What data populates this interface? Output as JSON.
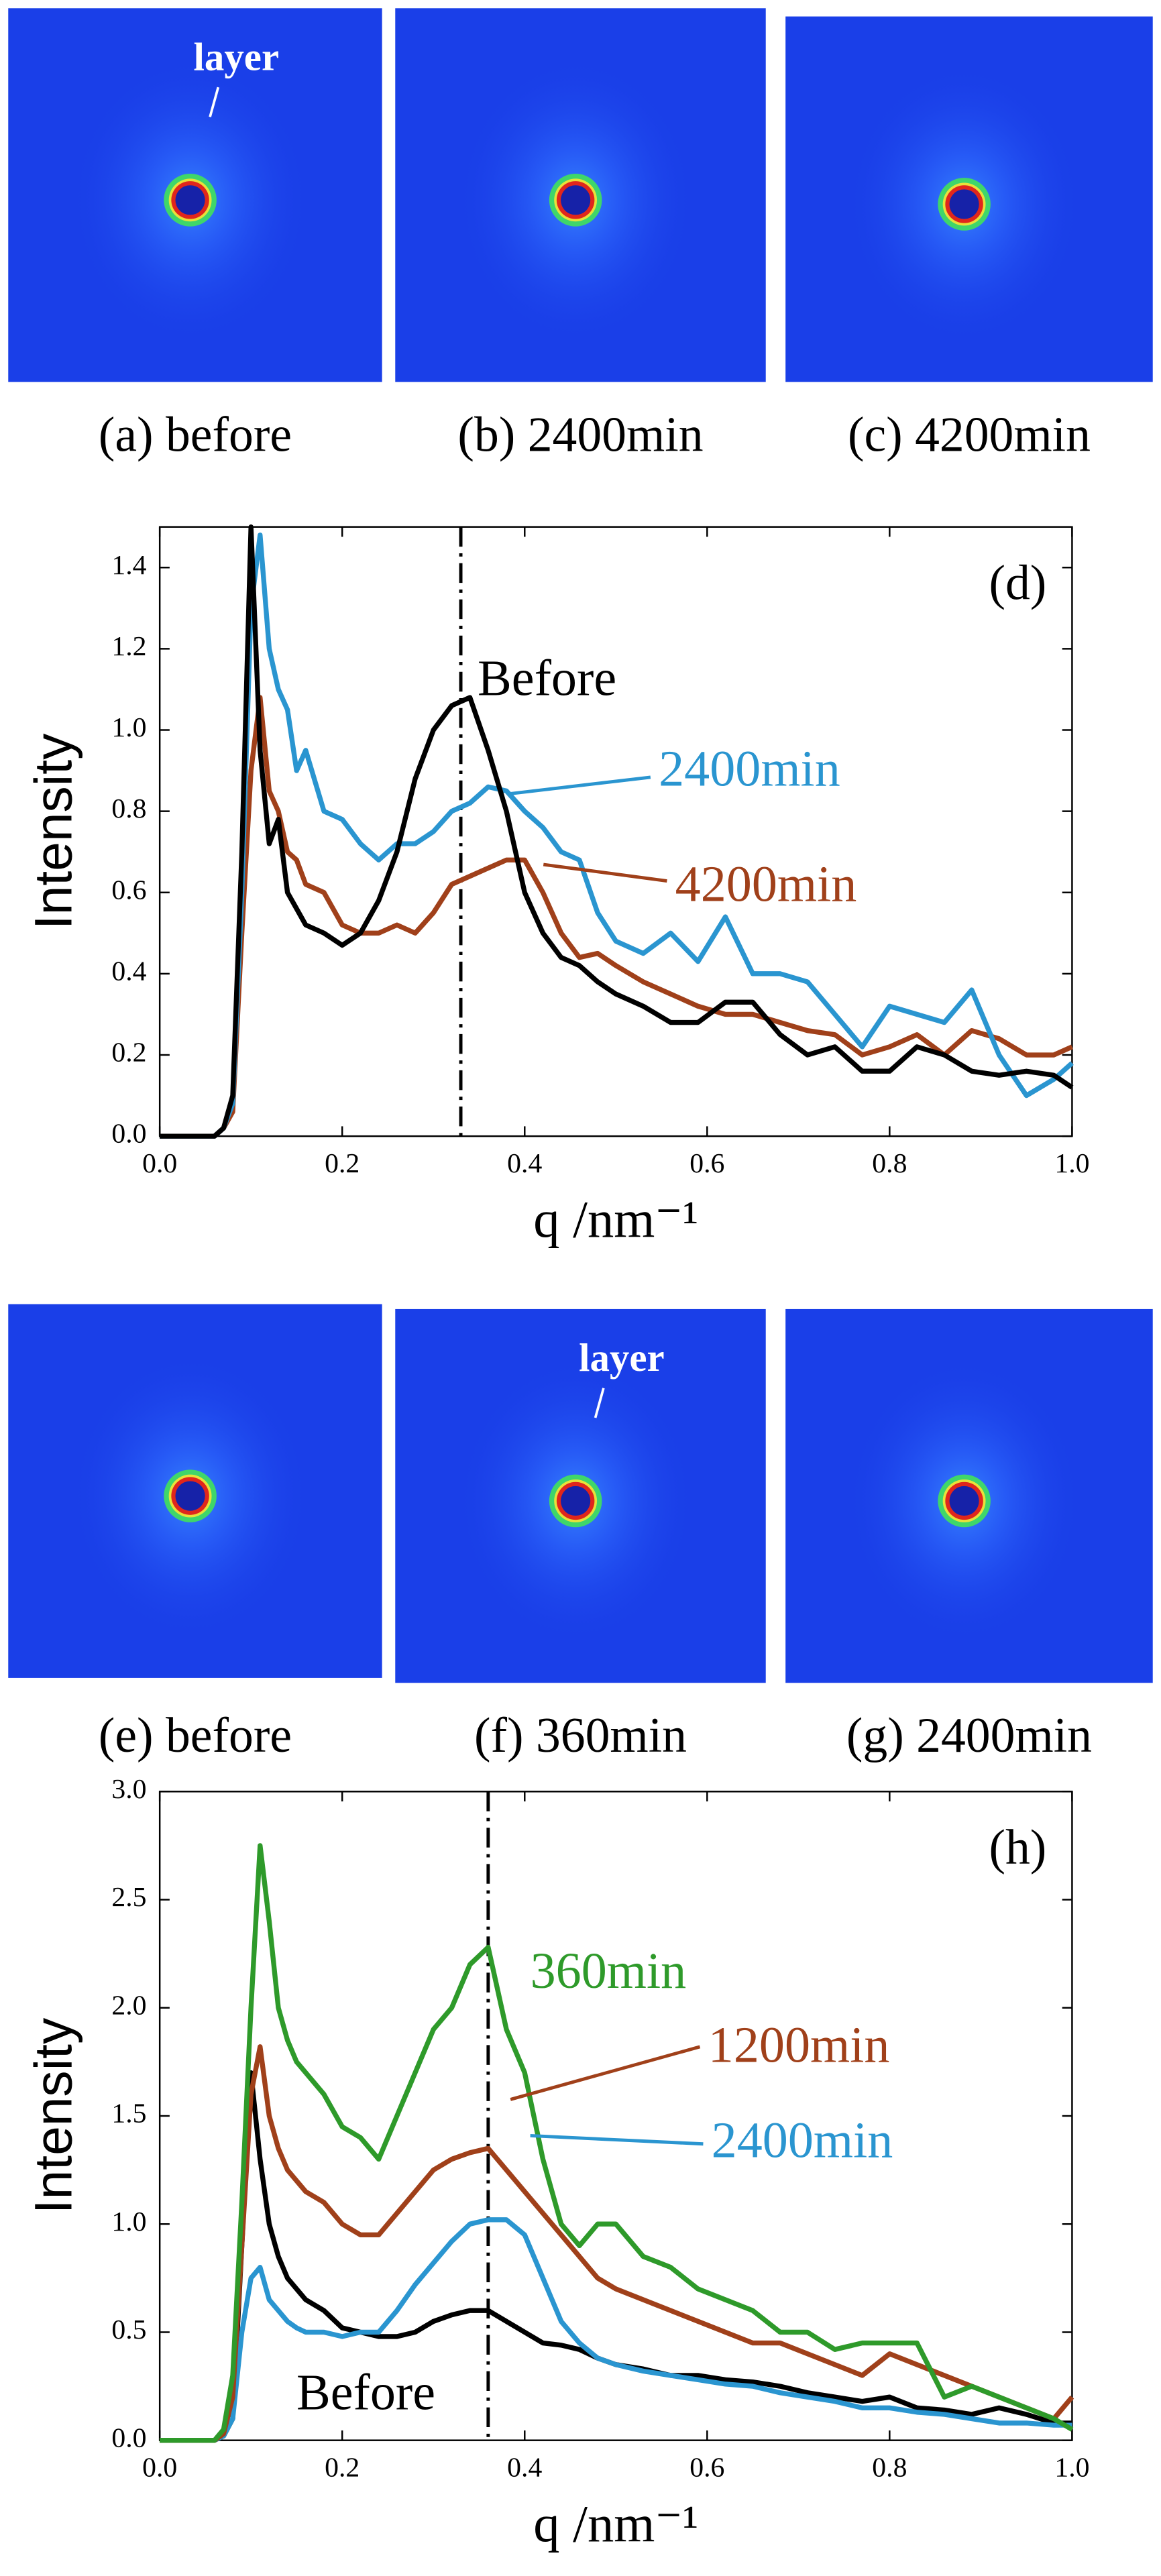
{
  "image_panels": [
    {
      "caption": "(a) before",
      "annotation": "layer"
    },
    {
      "caption": "(b) 2400min"
    },
    {
      "caption": "(c) 4200min"
    },
    {
      "caption": "(e) before"
    },
    {
      "caption": "(f) 360min",
      "annotation": "layer"
    },
    {
      "caption": "(g) 2400min"
    }
  ],
  "chart_data": [
    {
      "type": "line",
      "panel_label": "(d)",
      "xlabel": "q /nm⁻¹",
      "ylabel": "Intensity",
      "xlim": [
        0,
        1.0
      ],
      "ylim": [
        0,
        1.5
      ],
      "xticks": [
        {
          "value": 0,
          "label": "0.0"
        },
        0.2,
        0.4,
        0.6,
        0.8,
        {
          "value": 1,
          "label": "1.0"
        }
      ],
      "yticks": [
        {
          "value": 0,
          "label": "0.0"
        },
        0.2,
        0.4,
        0.6,
        0.8,
        {
          "value": 1,
          "label": "1.0"
        },
        1.2,
        1.4
      ],
      "vline": 0.33,
      "x": [
        0,
        0.02,
        0.04,
        0.06,
        0.07,
        0.08,
        0.09,
        0.1,
        0.11,
        0.12,
        0.13,
        0.14,
        0.15,
        0.16,
        0.18,
        0.2,
        0.22,
        0.24,
        0.26,
        0.28,
        0.3,
        0.32,
        0.34,
        0.36,
        0.38,
        0.4,
        0.42,
        0.44,
        0.46,
        0.48,
        0.5,
        0.53,
        0.56,
        0.59,
        0.62,
        0.65,
        0.68,
        0.71,
        0.74,
        0.77,
        0.8,
        0.83,
        0.86,
        0.89,
        0.92,
        0.95,
        0.98,
        1.0
      ],
      "series": [
        {
          "name": "Before",
          "color": "#000000",
          "values": [
            0,
            0,
            0,
            0,
            0.02,
            0.1,
            0.7,
            1.5,
            0.95,
            0.72,
            0.78,
            0.6,
            0.56,
            0.52,
            0.5,
            0.47,
            0.5,
            0.58,
            0.7,
            0.88,
            1.0,
            1.06,
            1.08,
            0.95,
            0.8,
            0.6,
            0.5,
            0.44,
            0.42,
            0.38,
            0.35,
            0.32,
            0.28,
            0.28,
            0.33,
            0.33,
            0.25,
            0.2,
            0.22,
            0.16,
            0.16,
            0.22,
            0.2,
            0.16,
            0.15,
            0.16,
            0.15,
            0.12
          ]
        },
        {
          "name": "2400min",
          "color": "#2a95d0",
          "values": [
            0,
            0,
            0,
            0,
            0.02,
            0.08,
            0.6,
            1.3,
            1.48,
            1.2,
            1.1,
            1.05,
            0.9,
            0.95,
            0.8,
            0.78,
            0.72,
            0.68,
            0.72,
            0.72,
            0.75,
            0.8,
            0.82,
            0.86,
            0.85,
            0.8,
            0.76,
            0.7,
            0.68,
            0.55,
            0.48,
            0.45,
            0.5,
            0.43,
            0.54,
            0.4,
            0.4,
            0.38,
            0.3,
            0.22,
            0.32,
            0.3,
            0.28,
            0.36,
            0.2,
            0.1,
            0.14,
            0.18
          ]
        },
        {
          "name": "4200min",
          "color": "#a0401a",
          "values": [
            0,
            0,
            0,
            0,
            0.02,
            0.06,
            0.5,
            0.9,
            1.08,
            0.85,
            0.8,
            0.7,
            0.68,
            0.62,
            0.6,
            0.52,
            0.5,
            0.5,
            0.52,
            0.5,
            0.55,
            0.62,
            0.64,
            0.66,
            0.68,
            0.68,
            0.6,
            0.5,
            0.44,
            0.45,
            0.42,
            0.38,
            0.35,
            0.32,
            0.3,
            0.3,
            0.28,
            0.26,
            0.25,
            0.2,
            0.22,
            0.25,
            0.2,
            0.26,
            0.24,
            0.2,
            0.2,
            0.22
          ]
        }
      ]
    },
    {
      "type": "line",
      "panel_label": "(h)",
      "xlabel": "q /nm⁻¹",
      "ylabel": "Intensity",
      "xlim": [
        0,
        1.0
      ],
      "ylim": [
        0,
        3.0
      ],
      "xticks": [
        {
          "value": 0,
          "label": "0.0"
        },
        0.2,
        0.4,
        0.6,
        0.8,
        {
          "value": 1,
          "label": "1.0"
        }
      ],
      "yticks": [
        {
          "value": 0,
          "label": "0.0"
        },
        0.5,
        {
          "value": 1,
          "label": "1.0"
        },
        1.5,
        {
          "value": 2,
          "label": "2.0"
        },
        2.5,
        {
          "value": 3,
          "label": "3.0"
        }
      ],
      "vline": 0.36,
      "x": [
        0,
        0.02,
        0.04,
        0.06,
        0.07,
        0.08,
        0.09,
        0.1,
        0.11,
        0.12,
        0.13,
        0.14,
        0.15,
        0.16,
        0.18,
        0.2,
        0.22,
        0.24,
        0.26,
        0.28,
        0.3,
        0.32,
        0.34,
        0.36,
        0.38,
        0.4,
        0.42,
        0.44,
        0.46,
        0.48,
        0.5,
        0.53,
        0.56,
        0.59,
        0.62,
        0.65,
        0.68,
        0.71,
        0.74,
        0.77,
        0.8,
        0.83,
        0.86,
        0.89,
        0.92,
        0.95,
        0.98,
        1.0
      ],
      "series": [
        {
          "name": "360min",
          "color": "#2e9a2a",
          "values": [
            0,
            0,
            0,
            0,
            0.05,
            0.3,
            1.1,
            2.0,
            2.75,
            2.4,
            2.0,
            1.85,
            1.75,
            1.7,
            1.6,
            1.45,
            1.4,
            1.3,
            1.5,
            1.7,
            1.9,
            2.0,
            2.2,
            2.28,
            1.9,
            1.7,
            1.3,
            1.0,
            0.9,
            1.0,
            1.0,
            0.85,
            0.8,
            0.7,
            0.65,
            0.6,
            0.5,
            0.5,
            0.42,
            0.45,
            0.45,
            0.45,
            0.2,
            0.25,
            0.2,
            0.15,
            0.1,
            0.05
          ]
        },
        {
          "name": "1200min",
          "color": "#a0401a",
          "values": [
            0,
            0,
            0,
            0,
            0.03,
            0.2,
            0.9,
            1.6,
            1.82,
            1.5,
            1.35,
            1.25,
            1.2,
            1.15,
            1.1,
            1.0,
            0.95,
            0.95,
            1.05,
            1.15,
            1.25,
            1.3,
            1.33,
            1.35,
            1.25,
            1.15,
            1.05,
            0.95,
            0.85,
            0.75,
            0.7,
            0.65,
            0.6,
            0.55,
            0.5,
            0.45,
            0.45,
            0.4,
            0.35,
            0.3,
            0.4,
            0.35,
            0.3,
            0.25,
            0.2,
            0.15,
            0.1,
            0.2
          ]
        },
        {
          "name": "2400min",
          "color": "#2a95d0",
          "values": [
            0,
            0,
            0,
            0,
            0.02,
            0.1,
            0.5,
            0.75,
            0.8,
            0.65,
            0.6,
            0.55,
            0.52,
            0.5,
            0.5,
            0.48,
            0.5,
            0.5,
            0.6,
            0.72,
            0.82,
            0.92,
            1.0,
            1.02,
            1.02,
            0.95,
            0.75,
            0.55,
            0.45,
            0.38,
            0.35,
            0.32,
            0.3,
            0.28,
            0.26,
            0.25,
            0.22,
            0.2,
            0.18,
            0.15,
            0.15,
            0.13,
            0.12,
            0.1,
            0.08,
            0.08,
            0.07,
            0.07
          ]
        },
        {
          "name": "Before",
          "color": "#000000",
          "values": [
            0,
            0,
            0,
            0,
            0.02,
            0.1,
            0.9,
            1.7,
            1.3,
            1.0,
            0.85,
            0.75,
            0.7,
            0.65,
            0.6,
            0.52,
            0.5,
            0.48,
            0.48,
            0.5,
            0.55,
            0.58,
            0.6,
            0.6,
            0.55,
            0.5,
            0.45,
            0.44,
            0.42,
            0.38,
            0.35,
            0.33,
            0.3,
            0.3,
            0.28,
            0.27,
            0.25,
            0.22,
            0.2,
            0.18,
            0.2,
            0.15,
            0.14,
            0.12,
            0.15,
            0.12,
            0.08,
            0.08
          ]
        }
      ]
    }
  ]
}
